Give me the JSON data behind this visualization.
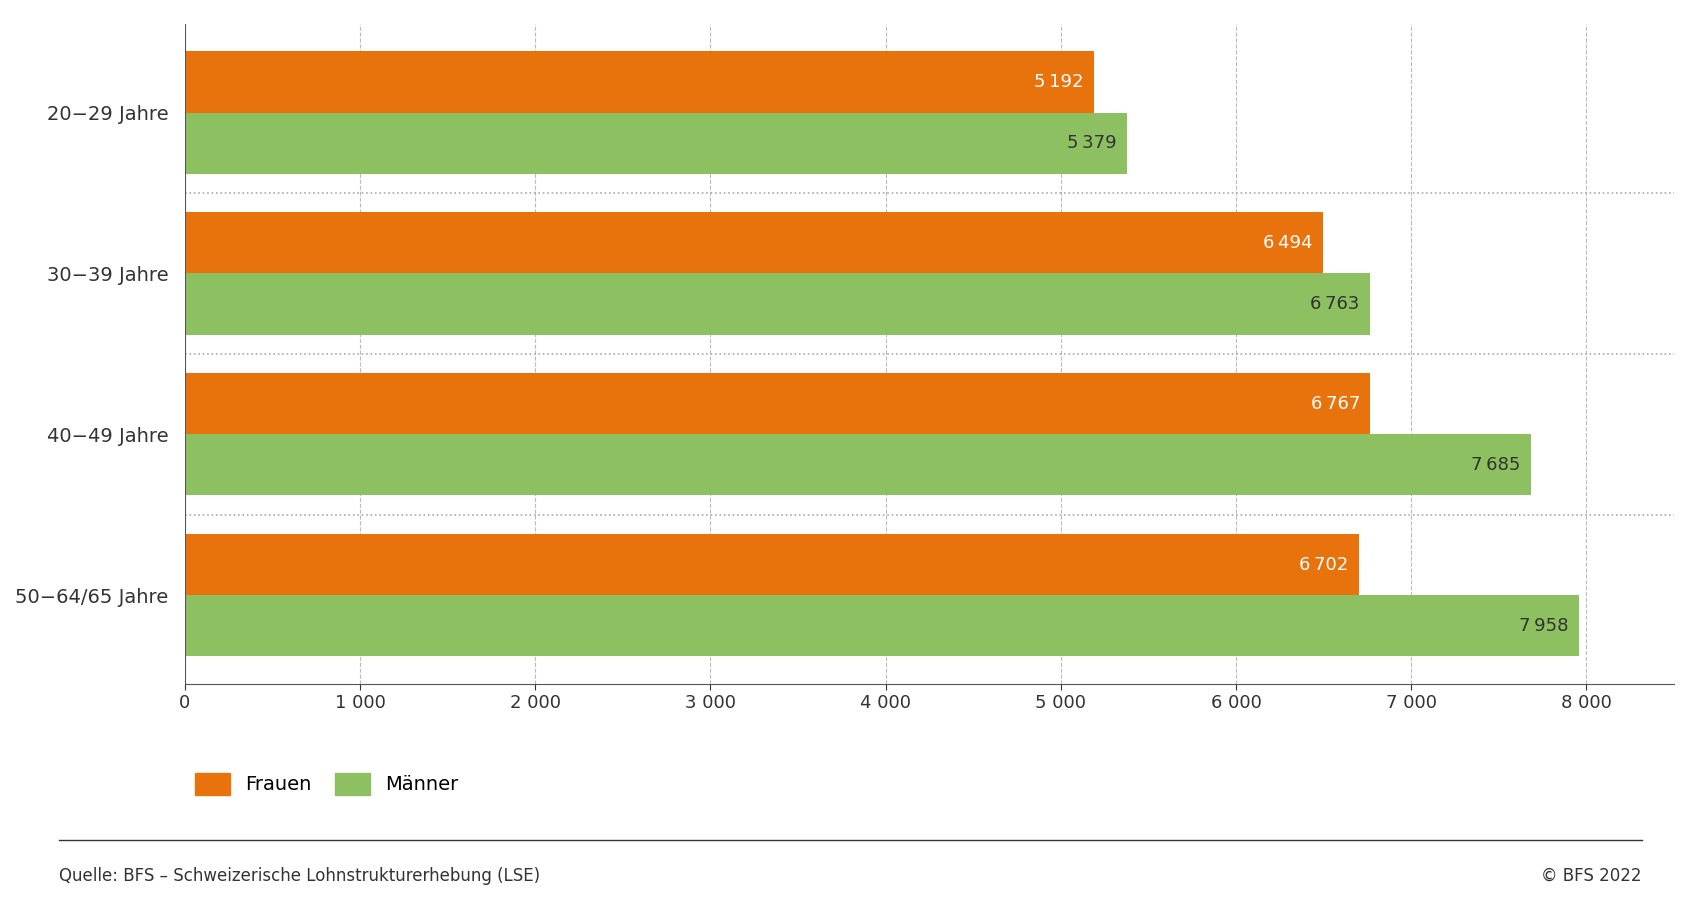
{
  "categories": [
    "20−29 Jahre",
    "30−39 Jahre",
    "40−49 Jahre",
    "50−64/65 Jahre"
  ],
  "frauen_values": [
    5192,
    6494,
    6767,
    6702
  ],
  "manner_values": [
    5379,
    6763,
    7685,
    7958
  ],
  "frauen_color": "#E8720C",
  "manner_color": "#8DC060",
  "bar_height": 0.38,
  "xlim": [
    0,
    8500
  ],
  "xticks": [
    0,
    1000,
    2000,
    3000,
    4000,
    5000,
    6000,
    7000,
    8000
  ],
  "xtick_labels": [
    "0",
    "1 000",
    "2 000",
    "3 000",
    "4 000",
    "5 000",
    "6 000",
    "7 000",
    "8 000"
  ],
  "background_color": "#ffffff",
  "grid_color": "#bbbbbb",
  "separator_color": "#aaaaaa",
  "label_frauen": "Frauen",
  "label_manner": "Männer",
  "source_text": "Quelle: BFS – Schweizerische Lohnstrukturerhebung (LSE)",
  "copyright_text": "© BFS 2022",
  "text_color": "#333333",
  "axis_color": "#555555",
  "label_fontsize": 14,
  "tick_fontsize": 13,
  "value_fontsize": 13,
  "legend_fontsize": 14,
  "source_fontsize": 12
}
